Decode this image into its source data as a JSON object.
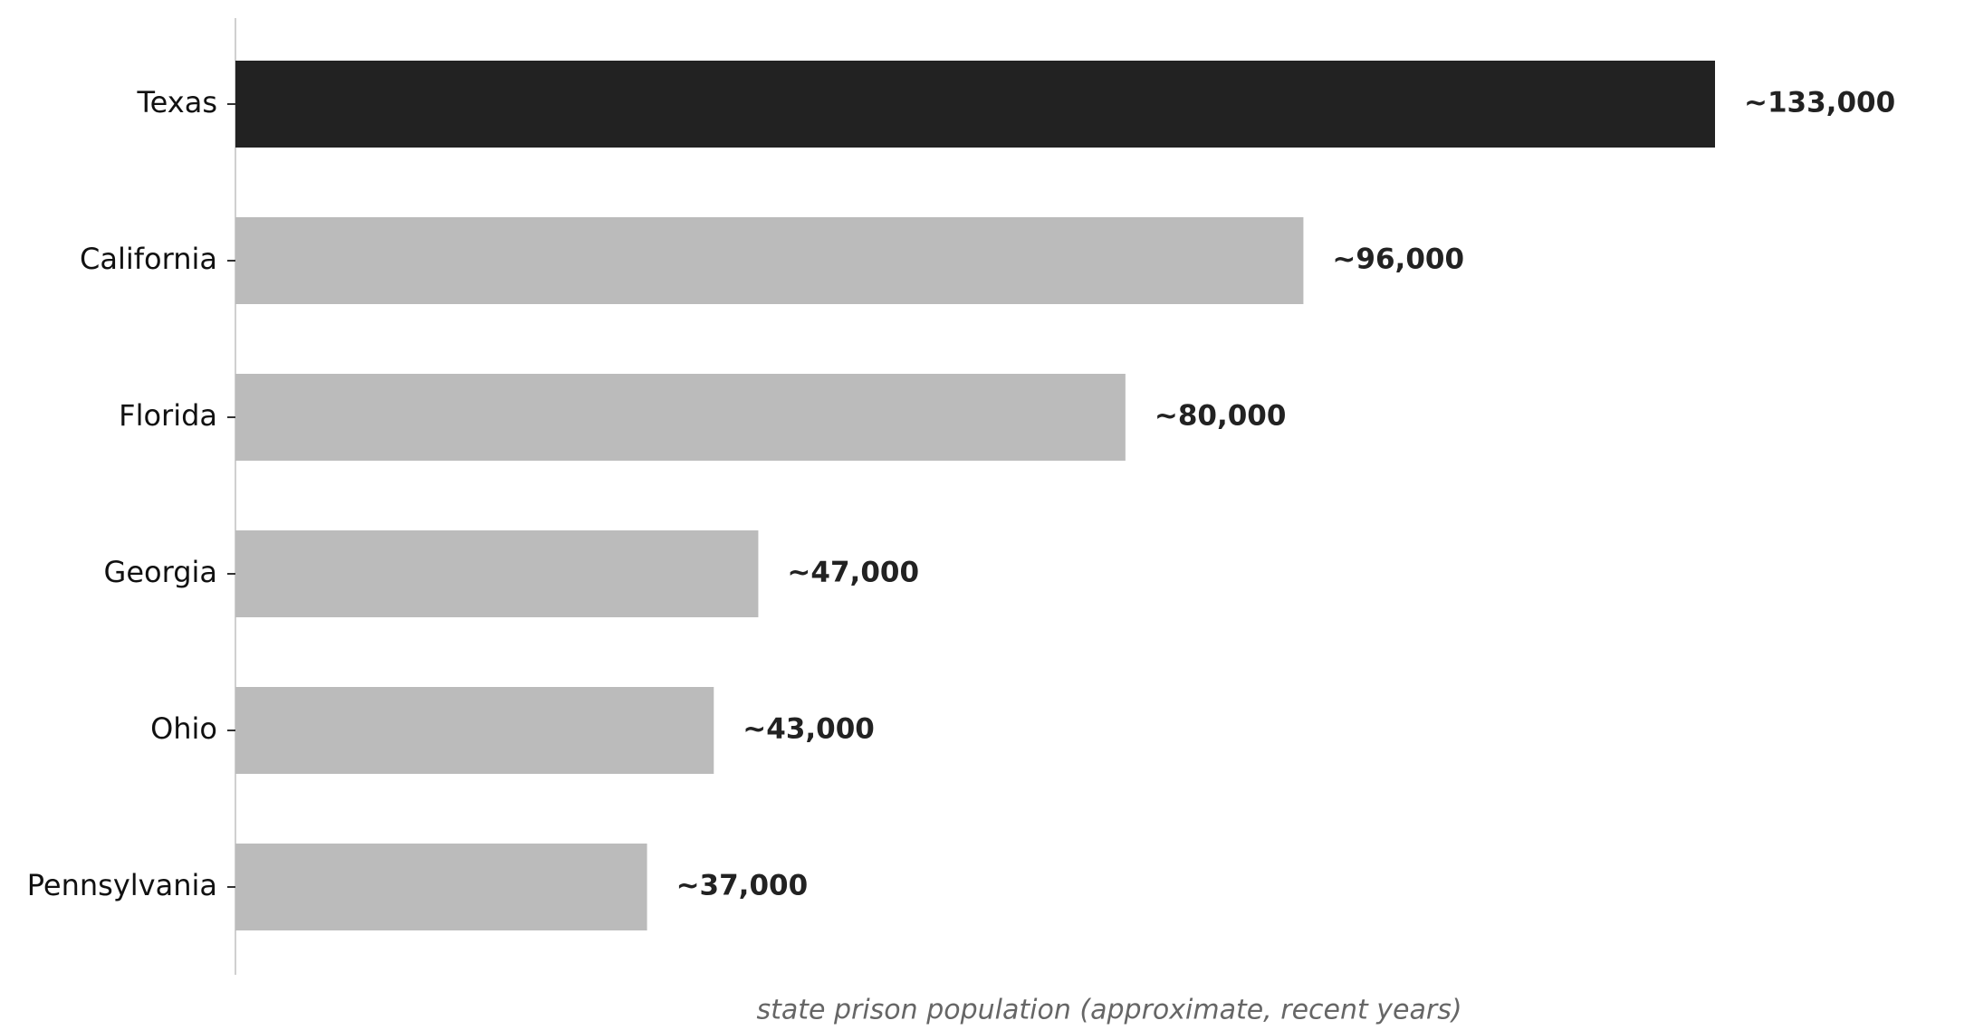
{
  "chart_data": {
    "type": "barh",
    "categories": [
      "Texas",
      "California",
      "Florida",
      "Georgia",
      "Ohio",
      "Pennsylvania"
    ],
    "values": [
      133000,
      96000,
      80000,
      47000,
      43000,
      37000
    ],
    "value_labels": [
      "~133,000",
      "~96,000",
      "~80,000",
      "~47,000",
      "~43,000",
      "~37,000"
    ],
    "colors": [
      "#222222",
      "#bbbbbb",
      "#bbbbbb",
      "#bbbbbb",
      "#bbbbbb",
      "#bbbbbb"
    ],
    "xlabel": "state prison population (approximate, recent years)",
    "xlim": [
      0,
      140000
    ]
  }
}
